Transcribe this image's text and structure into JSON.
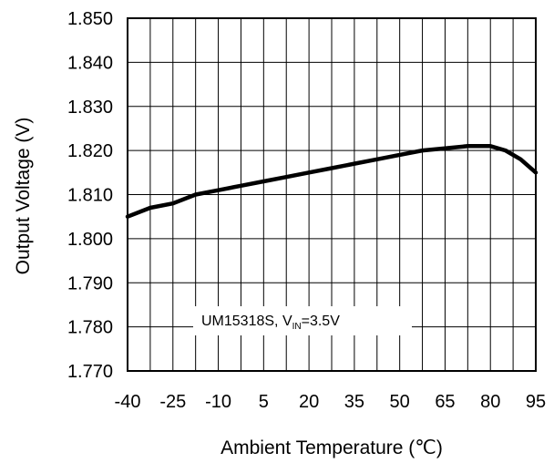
{
  "chart_data": {
    "type": "line",
    "title": "",
    "xlabel": "Ambient Temperature (℃)",
    "ylabel": "Output Voltage (V)",
    "xlim": [
      -40,
      95
    ],
    "ylim": [
      1.77,
      1.85
    ],
    "x_ticks": [
      "-40",
      "-25",
      "-10",
      "5",
      "20",
      "35",
      "50",
      "65",
      "80",
      "95"
    ],
    "y_ticks": [
      "1.850",
      "1.840",
      "1.830",
      "1.820",
      "1.810",
      "1.800",
      "1.790",
      "1.780",
      "1.770"
    ],
    "grid": true,
    "annotation": {
      "main": "UM15318S, V",
      "sub": "IN",
      "tail": "=3.5V"
    },
    "series": [
      {
        "x": [
          -40,
          -32.5,
          -25,
          -17.5,
          -10,
          -2.5,
          5,
          12.5,
          20,
          27.5,
          35,
          42.5,
          50,
          57.5,
          65,
          72.5,
          76,
          80,
          85,
          90,
          95
        ],
        "y": [
          1.805,
          1.807,
          1.808,
          1.81,
          1.811,
          1.812,
          1.813,
          1.814,
          1.815,
          1.816,
          1.817,
          1.818,
          1.819,
          1.82,
          1.8205,
          1.821,
          1.821,
          1.821,
          1.82,
          1.818,
          1.815
        ]
      }
    ]
  }
}
